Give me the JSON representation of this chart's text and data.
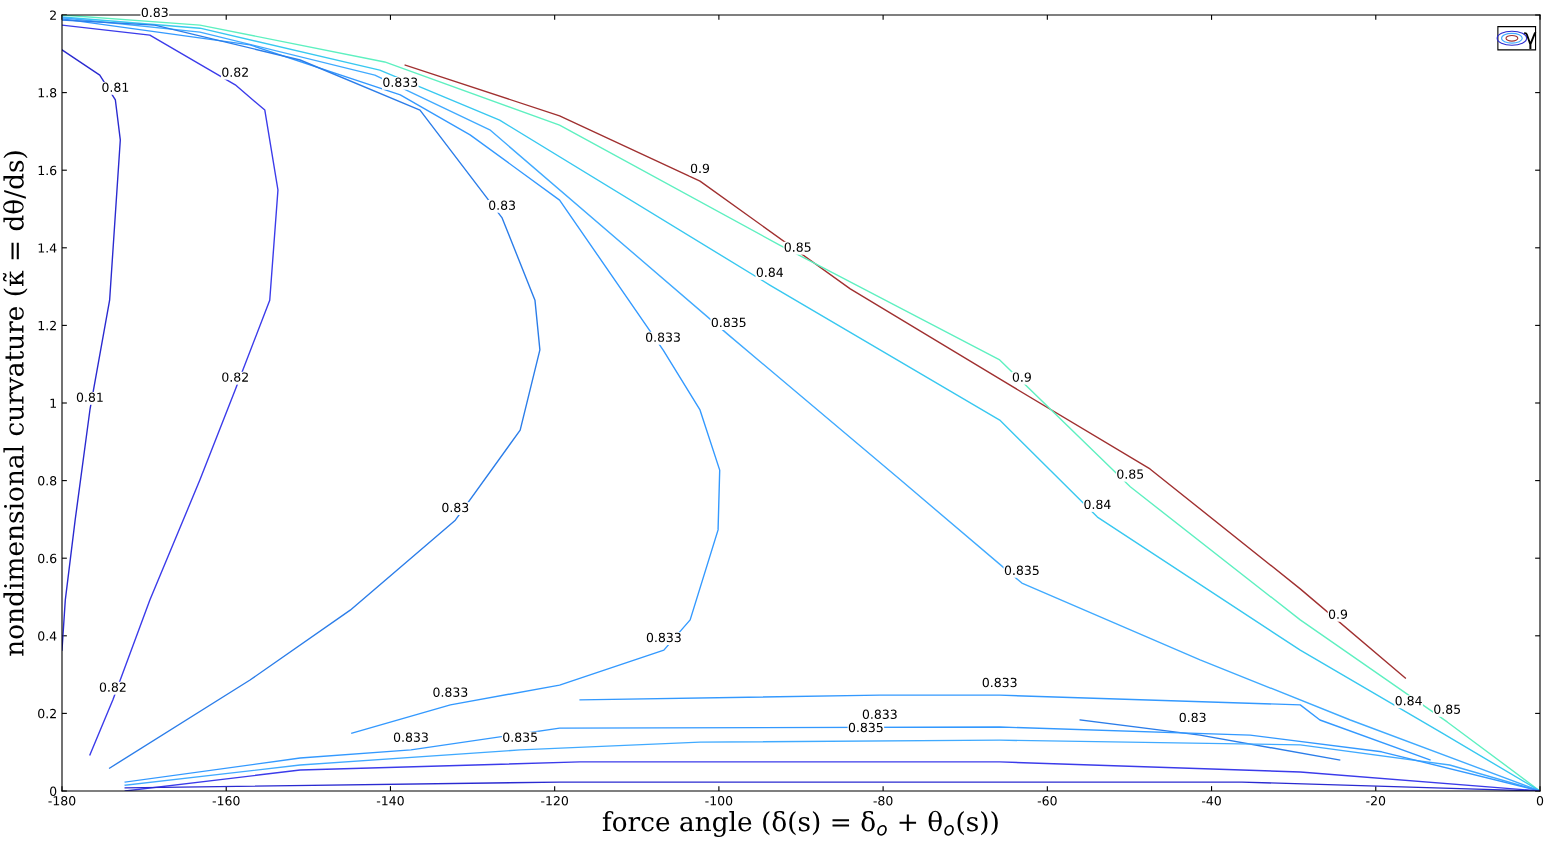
{
  "chart_data": {
    "type": "line",
    "xlabel": "force angle (δ(s) = δ$_{o}$ + θ$_{o}$(s))",
    "ylabel": "nondimensional curvature (κ̃ = dθ/ds)",
    "legend_title": "γ",
    "grid": false,
    "marker": "none",
    "line_style": "solid",
    "xlim": [
      -180,
      0
    ],
    "xticks": [
      -180,
      -160,
      -140,
      -120,
      -100,
      -80,
      -60,
      -40,
      -20,
      0
    ],
    "ylim": [
      0,
      2
    ],
    "yticks": [
      0,
      0.2,
      0.4,
      0.6,
      0.8,
      1,
      1.2,
      1.4,
      1.6,
      1.8,
      2
    ],
    "series": [
      {
        "color": "#a03030",
        "x": [
          -138.2,
          -119.4,
          -102.3,
          -84.0,
          -65.8,
          -47.5,
          -29.2,
          -16.4
        ],
        "values": [
          1.871,
          1.74,
          1.572,
          1.294,
          1.062,
          0.83,
          0.521,
          0.291
        ]
      },
      {
        "color": "#5ef0c0",
        "x": [
          -180,
          -163.2,
          -140.7,
          -119.4,
          -92.6,
          -65.8,
          -49.9,
          -29.2,
          -11.3,
          0
        ],
        "values": [
          2.0,
          1.974,
          1.879,
          1.716,
          1.407,
          1.111,
          0.784,
          0.441,
          0.178,
          0
        ]
      },
      {
        "color": "#38c8f0",
        "x": [
          -180,
          -163.2,
          -141.3,
          -126.7,
          -93.8,
          -65.8,
          -53.9,
          -29.2,
          -11.9,
          0
        ],
        "values": [
          1.995,
          1.966,
          1.858,
          1.729,
          1.304,
          0.956,
          0.706,
          0.363,
          0.149,
          0
        ]
      },
      {
        "color": "#40aaff",
        "x": [
          -180,
          -163.2,
          -141.9,
          -127.9,
          -98.8,
          -77.9,
          -63.1,
          -41.4,
          -23.1,
          0
        ],
        "values": [
          1.993,
          1.956,
          1.845,
          1.704,
          1.175,
          0.802,
          0.536,
          0.338,
          0.183,
          0
        ]
      },
      {
        "color": "#3399ff",
        "x": [
          -180,
          -157.1,
          -138.8,
          -130.3,
          -119.4,
          -106.8,
          -102.3,
          -99.9,
          -100.1,
          -103.5,
          -106.7,
          -119.4,
          -132.7,
          -144.7
        ],
        "values": [
          1.99,
          1.923,
          1.794,
          1.691,
          1.523,
          1.137,
          0.982,
          0.827,
          0.673,
          0.441,
          0.363,
          0.273,
          0.222,
          0.149
        ]
      },
      {
        "color": "#3399ff",
        "x": [
          -116.9,
          -80.4,
          -65.8,
          -29.2,
          -26.8,
          -13.4
        ],
        "values": [
          0.235,
          0.247,
          0.247,
          0.222,
          0.183,
          0.08
        ]
      },
      {
        "color": "#2b7de9",
        "x": [
          -180,
          -168.7,
          -151.0,
          -136.4,
          -126.4,
          -122.4,
          -121.8,
          -124.2,
          -132.1,
          -144.9,
          -157.1,
          -174.2
        ],
        "values": [
          1.987,
          1.974,
          1.884,
          1.755,
          1.477,
          1.265,
          1.137,
          0.93,
          0.698,
          0.466,
          0.286,
          0.059
        ]
      },
      {
        "color": "#2b7de9",
        "x": [
          -56.0,
          -41.4,
          -24.4
        ],
        "values": [
          0.183,
          0.144,
          0.08
        ]
      },
      {
        "color": "#3b3bea",
        "x": [
          -180,
          -169.3,
          -158.9,
          -155.3,
          -153.7,
          -154.7,
          -158.9,
          -163.2,
          -169.3,
          -173.8,
          -176.6
        ],
        "values": [
          1.974,
          1.948,
          1.82,
          1.755,
          1.549,
          1.265,
          1.034,
          0.802,
          0.492,
          0.235,
          0.093
        ]
      },
      {
        "color": "#2a2ad0",
        "x": [
          -180,
          -175.4,
          -173.5,
          -172.9,
          -174.2,
          -176.6,
          -178.4,
          -179.6,
          -180
        ],
        "values": [
          1.91,
          1.845,
          1.781,
          1.678,
          1.265,
          0.982,
          0.698,
          0.492,
          0.363
        ]
      },
      {
        "color": "#40aaff",
        "x": [
          -172.3,
          -151.0,
          -124.2,
          -102.3,
          -65.8,
          -29.2,
          -11.0,
          0
        ],
        "values": [
          0.015,
          0.067,
          0.106,
          0.126,
          0.131,
          0.119,
          0.067,
          0
        ]
      },
      {
        "color": "#3399ff",
        "x": [
          -172.3,
          -151.0,
          -137.5,
          -119.4,
          -65.8,
          -35.3,
          -19.3,
          0
        ],
        "values": [
          0.023,
          0.085,
          0.106,
          0.162,
          0.165,
          0.144,
          0.101,
          0
        ]
      },
      {
        "color": "#3b3bea",
        "x": [
          -172.3,
          -151.0,
          -116.9,
          -65.8,
          -29.2,
          0
        ],
        "values": [
          0.0,
          0.054,
          0.075,
          0.075,
          0.049,
          0
        ]
      },
      {
        "color": "#2a2ad0",
        "x": [
          -172.3,
          -119.4,
          -36.3,
          0
        ],
        "values": [
          0.008,
          0.023,
          0.023,
          0
        ]
      }
    ],
    "annotations": [
      {
        "text": "0.9",
        "x": -102.3,
        "y": 1.572
      },
      {
        "text": "0.9",
        "x": -63.1,
        "y": 1.034
      },
      {
        "text": "0.9",
        "x": -24.6,
        "y": 0.423
      },
      {
        "text": "0.85",
        "x": -90.4,
        "y": 1.369
      },
      {
        "text": "0.85",
        "x": -49.9,
        "y": 0.784
      },
      {
        "text": "0.85",
        "x": -11.3,
        "y": 0.178
      },
      {
        "text": "0.84",
        "x": -93.8,
        "y": 1.304
      },
      {
        "text": "0.84",
        "x": -53.9,
        "y": 0.706
      },
      {
        "text": "0.84",
        "x": -16.0,
        "y": 0.2
      },
      {
        "text": "0.835",
        "x": -98.8,
        "y": 1.175
      },
      {
        "text": "0.835",
        "x": -63.1,
        "y": 0.536
      },
      {
        "text": "0.835",
        "x": -124.2,
        "y": 0.106
      },
      {
        "text": "0.835",
        "x": -82.1,
        "y": 0.131
      },
      {
        "text": "0.833",
        "x": -138.8,
        "y": 1.794
      },
      {
        "text": "0.833",
        "x": -106.8,
        "y": 1.137
      },
      {
        "text": "0.833",
        "x": -106.7,
        "y": 0.363
      },
      {
        "text": "0.833",
        "x": -132.7,
        "y": 0.222
      },
      {
        "text": "0.833",
        "x": -65.8,
        "y": 0.247
      },
      {
        "text": "0.833",
        "x": -137.5,
        "y": 0.106
      },
      {
        "text": "0.833",
        "x": -80.4,
        "y": 0.165
      },
      {
        "text": "0.83",
        "x": -168.7,
        "y": 1.974
      },
      {
        "text": "0.83",
        "x": -126.4,
        "y": 1.477
      },
      {
        "text": "0.83",
        "x": -132.1,
        "y": 0.698
      },
      {
        "text": "0.83",
        "x": -42.3,
        "y": 0.157
      },
      {
        "text": "0.82",
        "x": -158.9,
        "y": 1.82
      },
      {
        "text": "0.82",
        "x": -158.9,
        "y": 1.034
      },
      {
        "text": "0.82",
        "x": -173.8,
        "y": 0.235
      },
      {
        "text": "0.81",
        "x": -173.5,
        "y": 1.781
      },
      {
        "text": "0.81",
        "x": -176.6,
        "y": 0.982
      }
    ]
  }
}
